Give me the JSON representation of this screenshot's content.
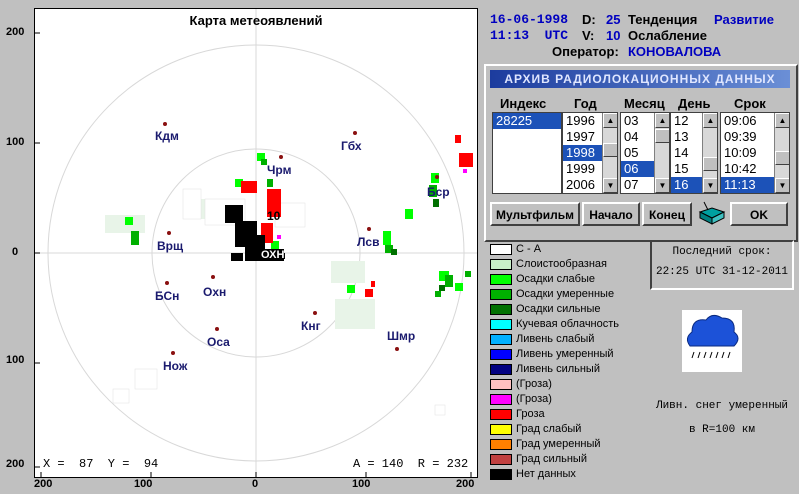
{
  "map": {
    "title": "Карта метеоявлений",
    "axis_labels": {
      "left": [
        "200",
        "100",
        "0",
        "100",
        "200"
      ],
      "bottom": [
        "200",
        "100",
        "0",
        "100",
        "200"
      ]
    },
    "cities": [
      {
        "name": "Кдм"
      },
      {
        "name": "Гбх"
      },
      {
        "name": "Чрм"
      },
      {
        "name": "Бср"
      },
      {
        "name": "Врщ"
      },
      {
        "name": "Лсв"
      },
      {
        "name": "ОХН"
      },
      {
        "name": "БСн"
      },
      {
        "name": "Охн"
      },
      {
        "name": "Кнг"
      },
      {
        "name": "Шмр"
      },
      {
        "name": "Оса"
      },
      {
        "name": "Нож"
      }
    ],
    "marker_label": "10",
    "readout_left": "X =  87  Y =  94",
    "readout_right": "A = 140  R = 232",
    "colors": {
      "light": "#d8f0d8",
      "moderate_green": "#00c000",
      "bright_green": "#00ff00",
      "red": "#ff0000",
      "black": "#000000",
      "cloud_white": "#ffffff"
    }
  },
  "header": {
    "date": "16-06-1998",
    "d_label": "D:",
    "d_value": "25",
    "trend_label": "Тенденция",
    "trend_value": "Развитие",
    "time": "11:13  UTC",
    "v_label": "V:",
    "v_value": "10",
    "v_text": "Ослабление",
    "operator_label": "Оператор:",
    "operator_value": "КОНОВАЛОВА"
  },
  "archive": {
    "title": "АРХИВ  РАДИОЛОКАЦИОННЫХ  ДАННЫХ",
    "headers": {
      "index": "Индекс",
      "year": "Год",
      "month": "Месяц",
      "day": "День",
      "term": "Срок"
    },
    "index_items": [
      "28225"
    ],
    "year_items": [
      "1996",
      "1997",
      "1998",
      "1999",
      "2006"
    ],
    "month_items": [
      "03",
      "04",
      "05",
      "06",
      "07"
    ],
    "day_items": [
      "12",
      "13",
      "14",
      "15",
      "16"
    ],
    "term_items": [
      "09:06",
      "09:39",
      "10:09",
      "10:42",
      "11:13"
    ],
    "buttons": {
      "multifilm": "Мультфильм",
      "start": "Начало",
      "end": "Конец",
      "ok": "OK"
    }
  },
  "legend": [
    {
      "label": "С - А",
      "color": "#ffffff"
    },
    {
      "label": "Слоистообразная",
      "color": "#c8f0c8"
    },
    {
      "label": "Осадки слабые",
      "color": "#00ff00"
    },
    {
      "label": "Осадки умеренные",
      "color": "#00b000"
    },
    {
      "label": "Осадки сильные",
      "color": "#007000"
    },
    {
      "label": "Кучевая облачность",
      "color": "#00ffff"
    },
    {
      "label": "Ливень слабый",
      "color": "#00b0ff"
    },
    {
      "label": "Ливень умеренный",
      "color": "#0000ff"
    },
    {
      "label": "Ливень сильный",
      "color": "#000080"
    },
    {
      "label": "(Гроза)",
      "color": "#ffc0c0"
    },
    {
      "label": " (Гроза)",
      "color": "#ff00ff"
    },
    {
      "label": "Гроза",
      "color": "#ff0000"
    },
    {
      "label": "Град слабый",
      "color": "#ffff00"
    },
    {
      "label": "Град умеренный",
      "color": "#ff8000"
    },
    {
      "label": "Град сильный",
      "color": "#c04040"
    },
    {
      "label": "Нет данных",
      "color": "#000000"
    }
  ],
  "last_term": {
    "label": "Последний срок:",
    "value": "22:25 UTC 31-12-2011"
  },
  "phenomenon": {
    "line1": "Ливн. снег умеренный",
    "line2": "в R=100 км"
  }
}
